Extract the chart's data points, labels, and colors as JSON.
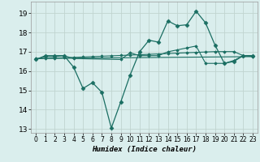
{
  "xlabel": "Humidex (Indice chaleur)",
  "bg_color": "#daeeed",
  "grid_color": "#c0d4d0",
  "line_color": "#1a6e62",
  "xlim": [
    -0.5,
    23.5
  ],
  "ylim": [
    12.8,
    19.6
  ],
  "yticks": [
    13,
    14,
    15,
    16,
    17,
    18,
    19
  ],
  "xticks": [
    0,
    1,
    2,
    3,
    4,
    5,
    6,
    7,
    8,
    9,
    10,
    11,
    12,
    13,
    14,
    15,
    16,
    17,
    18,
    19,
    20,
    21,
    22,
    23
  ],
  "line1_x": [
    0,
    1,
    2,
    3,
    4,
    5,
    6,
    7,
    8,
    9,
    10,
    11,
    12,
    13,
    14,
    15,
    16,
    17,
    18,
    19,
    20,
    21,
    22,
    23
  ],
  "line1_y": [
    16.6,
    16.8,
    16.8,
    16.8,
    16.2,
    15.1,
    15.4,
    14.9,
    13.05,
    14.4,
    15.8,
    17.0,
    17.6,
    17.5,
    18.6,
    18.35,
    18.4,
    19.1,
    18.5,
    17.35,
    16.4,
    16.5,
    16.8,
    16.8
  ],
  "line2_x": [
    0,
    1,
    2,
    3,
    4,
    5,
    6,
    7,
    8,
    9,
    10,
    11,
    12,
    13,
    14,
    15,
    16,
    17,
    18,
    19,
    20,
    21,
    22,
    23
  ],
  "line2_y": [
    16.65,
    16.65,
    16.67,
    16.69,
    16.71,
    16.73,
    16.75,
    16.77,
    16.79,
    16.81,
    16.83,
    16.85,
    16.87,
    16.89,
    16.91,
    16.93,
    16.95,
    16.97,
    16.99,
    17.01,
    17.01,
    17.01,
    16.8,
    16.8
  ],
  "line3_x": [
    0,
    23
  ],
  "line3_y": [
    16.65,
    16.75
  ],
  "line4_x": [
    0,
    1,
    2,
    3,
    4,
    9,
    10,
    11,
    12,
    13,
    14,
    15,
    16,
    17,
    18,
    19,
    20,
    21,
    22,
    23
  ],
  "line4_y": [
    16.6,
    16.75,
    16.75,
    16.8,
    16.65,
    16.6,
    16.95,
    16.8,
    16.8,
    16.8,
    17.0,
    17.1,
    17.2,
    17.3,
    16.4,
    16.4,
    16.4,
    16.55,
    16.8,
    16.75
  ]
}
